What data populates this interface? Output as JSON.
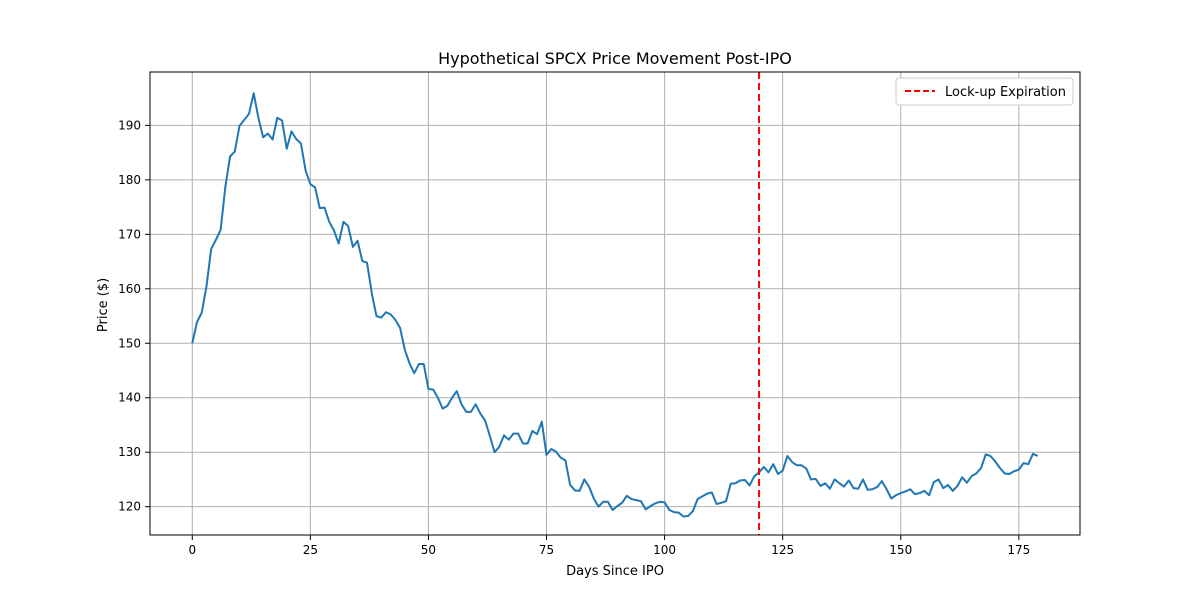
{
  "chart_data": {
    "type": "line",
    "title": "Hypothetical SPCX Price Movement Post-IPO",
    "xlabel": "Days Since IPO",
    "ylabel": "Price ($)",
    "xlim": [
      -8.95,
      187.95
    ],
    "ylim": [
      114.8,
      199.8
    ],
    "xticks": [
      0,
      25,
      50,
      75,
      100,
      125,
      150,
      175
    ],
    "yticks": [
      120,
      130,
      140,
      150,
      160,
      170,
      180,
      190
    ],
    "grid": true,
    "legend_position": "top-right",
    "series": [
      {
        "color": "#1f77b4",
        "x": [
          0,
          1,
          2,
          3,
          4,
          5,
          6,
          7,
          8,
          9,
          10,
          11,
          12,
          13,
          14,
          15,
          16,
          17,
          18,
          19,
          20,
          21,
          22,
          23,
          24,
          25,
          26,
          27,
          28,
          29,
          30,
          31,
          32,
          33,
          34,
          35,
          36,
          37,
          38,
          39,
          40,
          41,
          42,
          43,
          44,
          45,
          46,
          47,
          48,
          49,
          50,
          51,
          52,
          53,
          54,
          55,
          56,
          57,
          58,
          59,
          60,
          61,
          62,
          63,
          64,
          65,
          66,
          67,
          68,
          69,
          70,
          71,
          72,
          73,
          74,
          75,
          76,
          77,
          78,
          79,
          80,
          81,
          82,
          83,
          84,
          85,
          86,
          87,
          88,
          89,
          90,
          91,
          92,
          93,
          94,
          95,
          96,
          97,
          98,
          99,
          100,
          101,
          102,
          103,
          104,
          105,
          106,
          107,
          108,
          109,
          110,
          111,
          112,
          113,
          114,
          115,
          116,
          117,
          118,
          119,
          120,
          121,
          122,
          123,
          124,
          125,
          126,
          127,
          128,
          129,
          130,
          131,
          132,
          133,
          134,
          135,
          136,
          137,
          138,
          139,
          140,
          141,
          142,
          143,
          144,
          145,
          146,
          147,
          148,
          149,
          150,
          151,
          152,
          153,
          154,
          155,
          156,
          157,
          158,
          159,
          160,
          161,
          162,
          163,
          164,
          165,
          166,
          167,
          168,
          169,
          170,
          171,
          172,
          173,
          174,
          175,
          176,
          177,
          178,
          179
        ],
        "values": [
          150.0,
          153.9,
          155.6,
          160.4,
          167.3,
          169.0,
          170.8,
          178.7,
          184.3,
          185.2,
          189.9,
          191.0,
          192.1,
          195.9,
          191.4,
          187.8,
          188.5,
          187.4,
          191.4,
          190.9,
          185.7,
          188.9,
          187.5,
          186.7,
          181.7,
          179.2,
          178.6,
          174.8,
          174.9,
          172.3,
          170.7,
          168.3,
          172.3,
          171.5,
          167.7,
          168.8,
          165.1,
          164.8,
          159.2,
          155.0,
          154.7,
          155.7,
          155.3,
          154.3,
          152.8,
          148.8,
          146.3,
          144.5,
          146.2,
          146.2,
          141.6,
          141.5,
          140.0,
          138.0,
          138.5,
          140.0,
          141.2,
          138.8,
          137.4,
          137.4,
          138.8,
          137.1,
          135.8,
          133.0,
          130.0,
          131.0,
          133.1,
          132.3,
          133.4,
          133.4,
          131.6,
          131.6,
          133.9,
          133.3,
          135.6,
          129.5,
          130.6,
          130.1,
          129.0,
          128.5,
          124.0,
          123.0,
          122.9,
          125.0,
          123.7,
          121.5,
          120.0,
          120.9,
          120.9,
          119.4,
          120.1,
          120.7,
          122.0,
          121.4,
          121.2,
          121.0,
          119.5,
          120.1,
          120.6,
          120.9,
          120.8,
          119.4,
          119.0,
          118.9,
          118.2,
          118.3,
          119.2,
          121.4,
          121.9,
          122.4,
          122.6,
          120.5,
          120.7,
          121.0,
          124.2,
          124.3,
          124.8,
          124.9,
          123.9,
          125.6,
          126.3,
          127.3,
          126.3,
          127.8,
          126.0,
          126.6,
          129.3,
          128.2,
          127.6,
          127.6,
          127.0,
          125.0,
          125.1,
          123.8,
          124.3,
          123.3,
          125.0,
          124.3,
          123.7,
          124.8,
          123.4,
          123.3,
          125.0,
          123.1,
          123.2,
          123.6,
          124.7,
          123.2,
          121.5,
          122.1,
          122.5,
          122.8,
          123.2,
          122.3,
          122.5,
          122.9,
          122.1,
          124.5,
          125.0,
          123.4,
          124.0,
          122.9,
          123.8,
          125.4,
          124.4,
          125.6,
          126.1,
          127.1,
          129.6,
          129.3,
          128.3,
          127.1,
          126.1,
          126.0,
          126.5,
          126.8,
          128.0,
          127.8,
          129.7,
          129.3
        ]
      }
    ],
    "vline": {
      "x": 120,
      "label": "Lock-up Expiration",
      "color": "#ff0000"
    }
  }
}
